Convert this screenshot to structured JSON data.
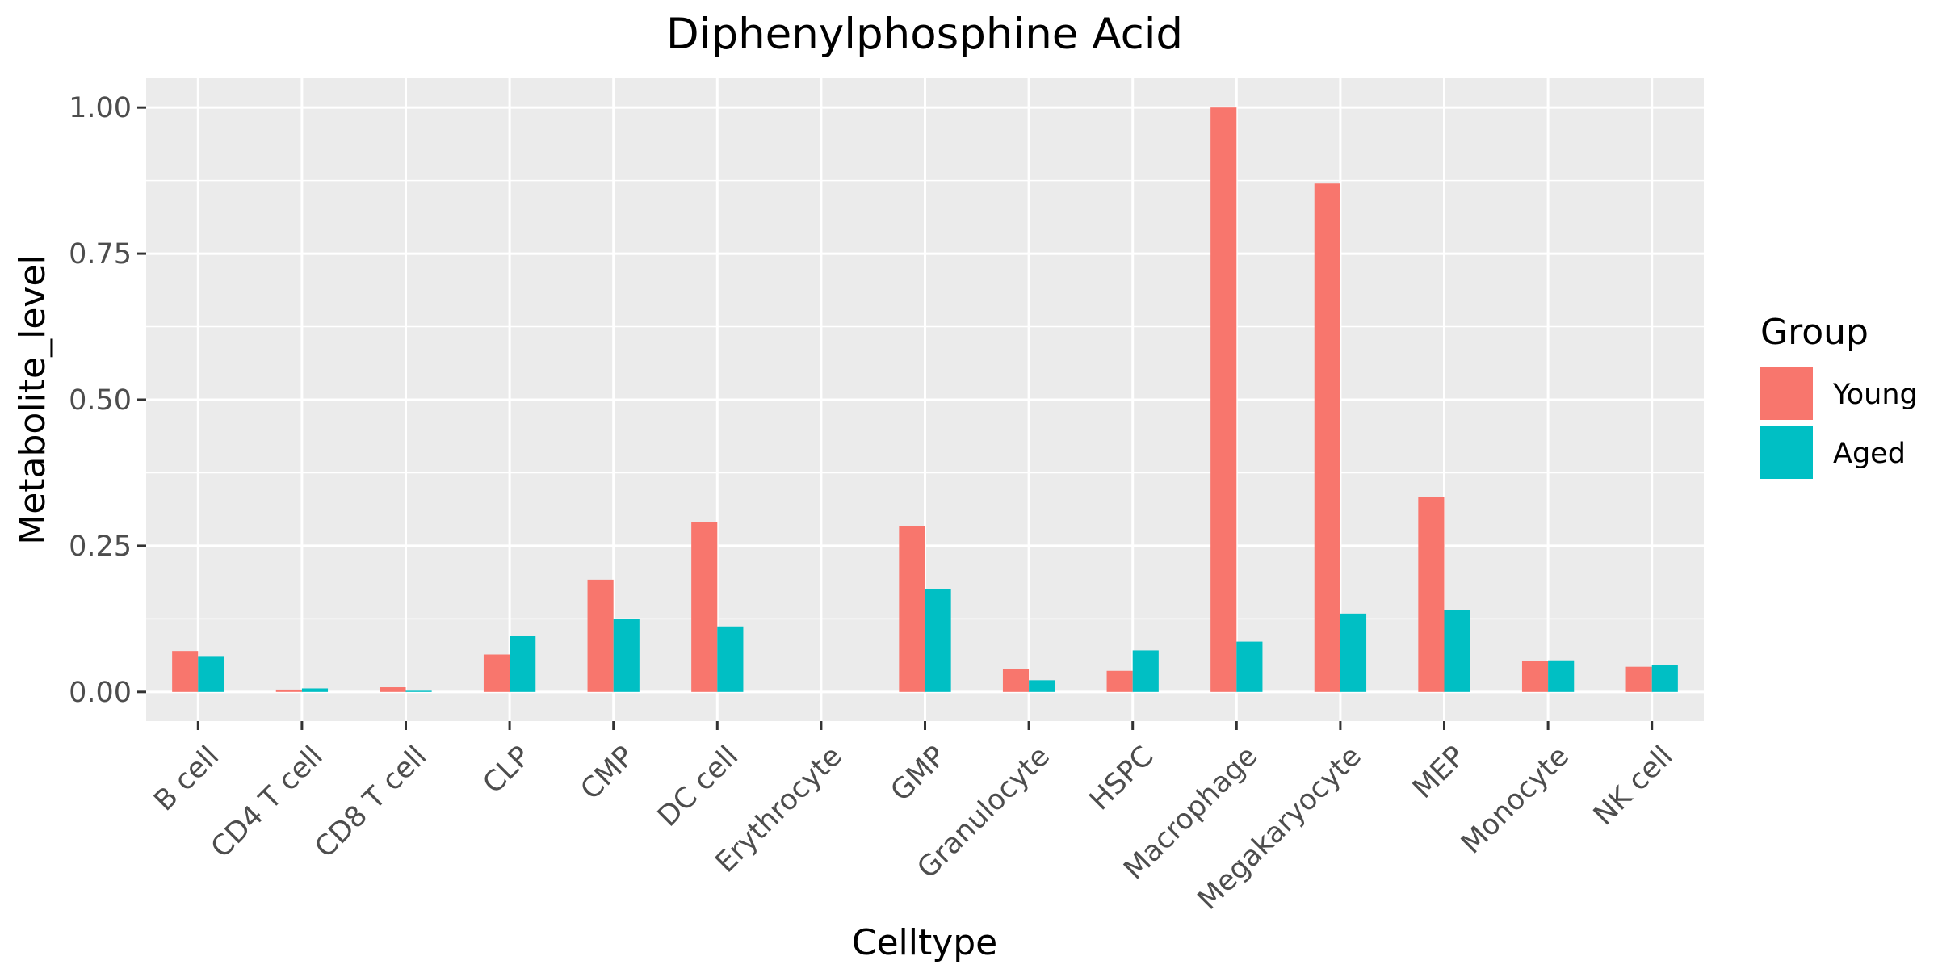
{
  "chart_data": {
    "type": "bar",
    "title": "Diphenylphosphine Acid",
    "xlabel": "Celltype",
    "ylabel": "Metabolite_level",
    "ylim": [
      -0.05,
      1.05
    ],
    "yticks": [
      0.0,
      0.25,
      0.5,
      0.75,
      1.0
    ],
    "ytick_labels": [
      "0.00",
      "0.25",
      "0.50",
      "0.75",
      "1.00"
    ],
    "categories": [
      "B cell",
      "CD4 T cell",
      "CD8 T cell",
      "CLP",
      "CMP",
      "DC cell",
      "Erythrocyte",
      "GMP",
      "Granulocyte",
      "HSPC",
      "Macrophage",
      "Megakaryocyte",
      "MEP",
      "Monocyte",
      "NK cell"
    ],
    "series": [
      {
        "name": "Young",
        "color": "#F8766D",
        "values": [
          0.07,
          0.004,
          0.008,
          0.064,
          0.192,
          0.29,
          0.0,
          0.284,
          0.039,
          0.036,
          1.0,
          0.87,
          0.334,
          0.053,
          0.043
        ]
      },
      {
        "name": "Aged",
        "color": "#00BFC4",
        "values": [
          0.06,
          0.006,
          0.002,
          0.096,
          0.125,
          0.112,
          0.0,
          0.176,
          0.02,
          0.071,
          0.086,
          0.134,
          0.14,
          0.054,
          0.046
        ]
      }
    ],
    "legend": {
      "title": "Group",
      "position": "right"
    },
    "grid": true,
    "panel_background": "#EBEBEB",
    "gridline_color": "#FFFFFF"
  }
}
